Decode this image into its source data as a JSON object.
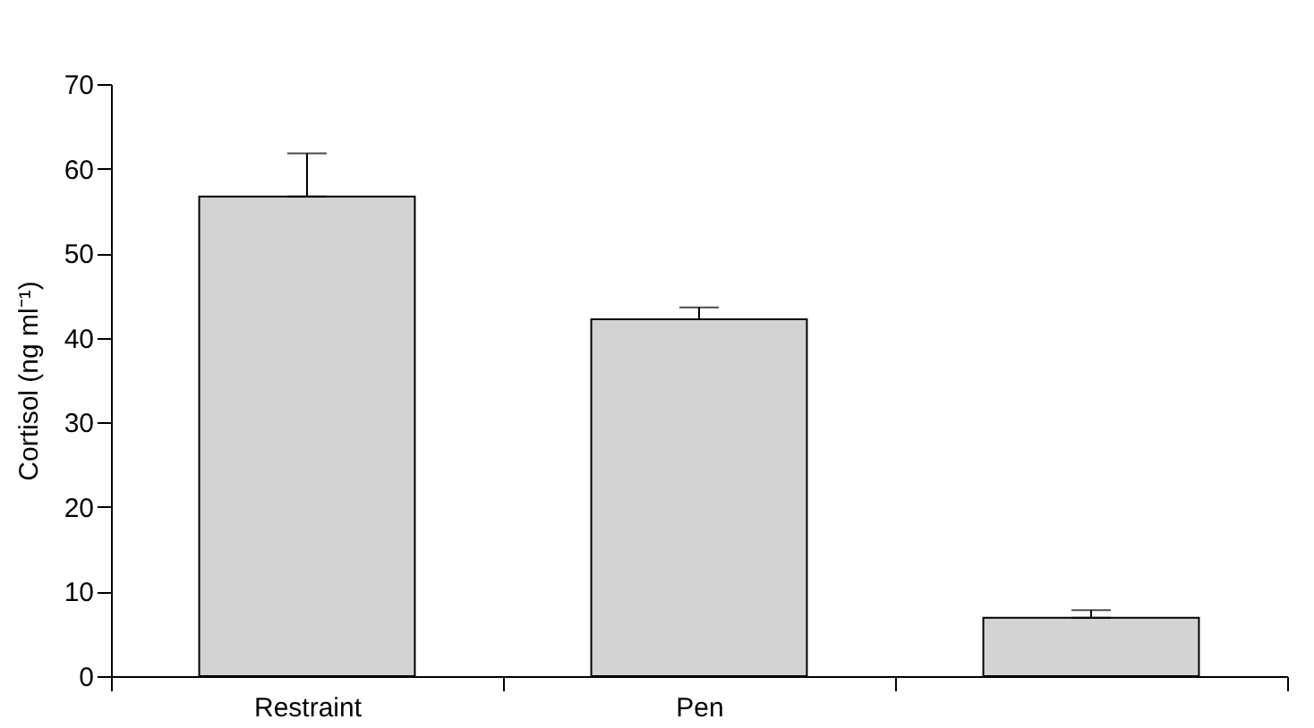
{
  "chart_data": {
    "type": "bar",
    "ylabel": "Cortisol (ng ml⁻¹)",
    "categories": [
      "Restraint",
      "Pen",
      null
    ],
    "values": [
      56.7,
      42.2,
      6.9
    ],
    "errors": [
      [
        56.7,
        61.8
      ],
      [
        42.2,
        43.6
      ],
      [
        6.9,
        7.8
      ]
    ],
    "color": "#d3d3d3",
    "ylim": [
      0,
      70
    ],
    "yticks": [
      0,
      10,
      20,
      30,
      40,
      50,
      60,
      70
    ],
    "grid": false
  }
}
